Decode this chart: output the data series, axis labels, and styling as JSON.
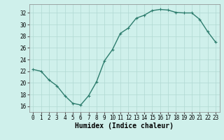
{
  "x": [
    0,
    1,
    2,
    3,
    4,
    5,
    6,
    7,
    8,
    9,
    10,
    11,
    12,
    13,
    14,
    15,
    16,
    17,
    18,
    19,
    20,
    21,
    22,
    23
  ],
  "y": [
    22.3,
    22.0,
    20.5,
    19.5,
    17.8,
    16.5,
    16.2,
    17.8,
    20.2,
    23.8,
    25.7,
    28.5,
    29.4,
    31.1,
    31.6,
    32.4,
    32.6,
    32.5,
    32.1,
    32.0,
    32.0,
    30.9,
    28.8,
    27.0
  ],
  "line_color": "#2e7d6e",
  "marker": "+",
  "markersize": 3,
  "bg_color": "#cff0eb",
  "grid_color": "#b0d8d2",
  "xlabel": "Humidex (Indice chaleur)",
  "xlim": [
    -0.5,
    23.5
  ],
  "ylim": [
    15.0,
    33.5
  ],
  "yticks": [
    16,
    18,
    20,
    22,
    24,
    26,
    28,
    30,
    32
  ],
  "xticks": [
    0,
    1,
    2,
    3,
    4,
    5,
    6,
    7,
    8,
    9,
    10,
    11,
    12,
    13,
    14,
    15,
    16,
    17,
    18,
    19,
    20,
    21,
    22,
    23
  ],
  "xlabel_fontsize": 7,
  "tick_fontsize": 5.5,
  "linewidth": 1.0,
  "markeredgewidth": 0.8
}
